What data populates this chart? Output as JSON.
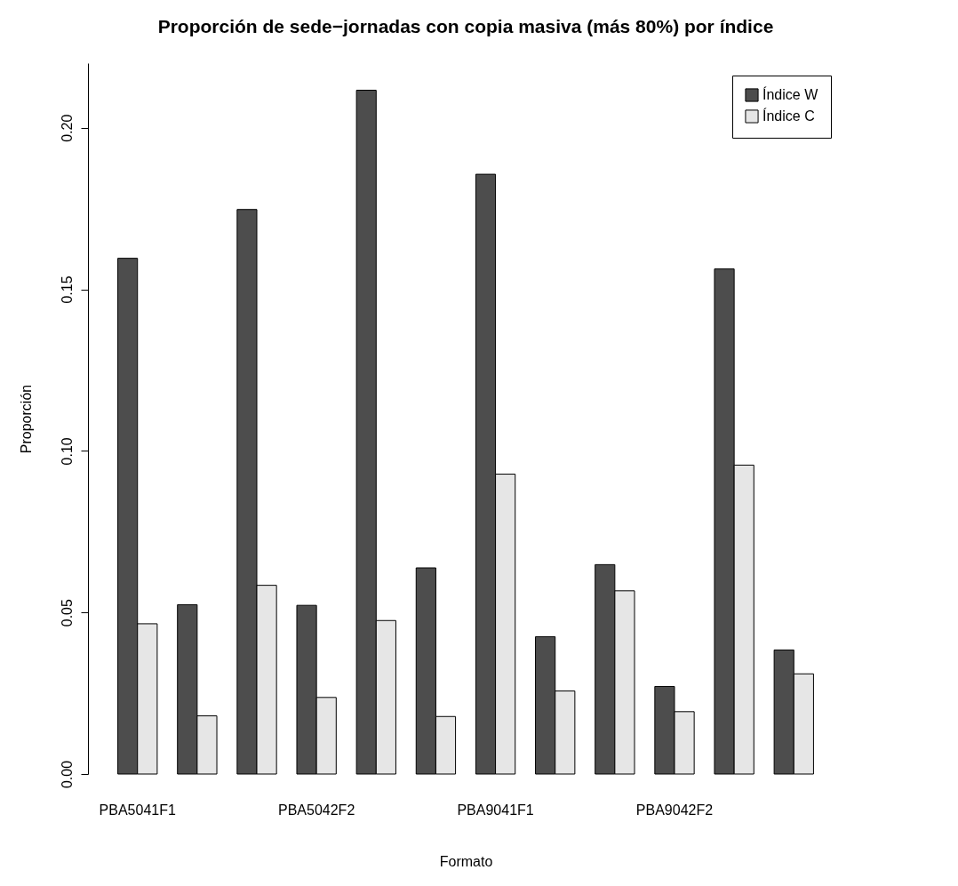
{
  "chart_data": {
    "type": "bar",
    "title": "Proporción de sede−jornadas con copia masiva (más 80%) por índice",
    "xlabel": "Formato",
    "ylabel": "Proporción",
    "categories": [
      "PBA5041F1",
      null,
      null,
      "PBA5042F2",
      null,
      null,
      "PBA9041F1",
      null,
      null,
      "PBA9042F2",
      null,
      null
    ],
    "series": [
      {
        "name": "Índice W",
        "color": "#4d4d4d",
        "values": [
          0.1596,
          0.0524,
          0.1747,
          0.0522,
          0.2116,
          0.0638,
          0.1856,
          0.0425,
          0.0648,
          0.0271,
          0.1563,
          0.0384
        ]
      },
      {
        "name": "Índice C",
        "color": "#e6e6e6",
        "values": [
          0.0465,
          0.018,
          0.0584,
          0.0237,
          0.0475,
          0.0178,
          0.0928,
          0.0257,
          0.0567,
          0.0193,
          0.0956,
          0.031
        ]
      }
    ],
    "ylim": [
      0,
      0.22
    ],
    "yticks": [
      {
        "value": 0,
        "label": "0.00"
      },
      {
        "value": 0.05,
        "label": "0.05"
      },
      {
        "value": 0.1,
        "label": "0.10"
      },
      {
        "value": 0.15,
        "label": "0.15"
      },
      {
        "value": 0.2,
        "label": "0.20"
      }
    ],
    "grid": false,
    "legend": "top right"
  }
}
